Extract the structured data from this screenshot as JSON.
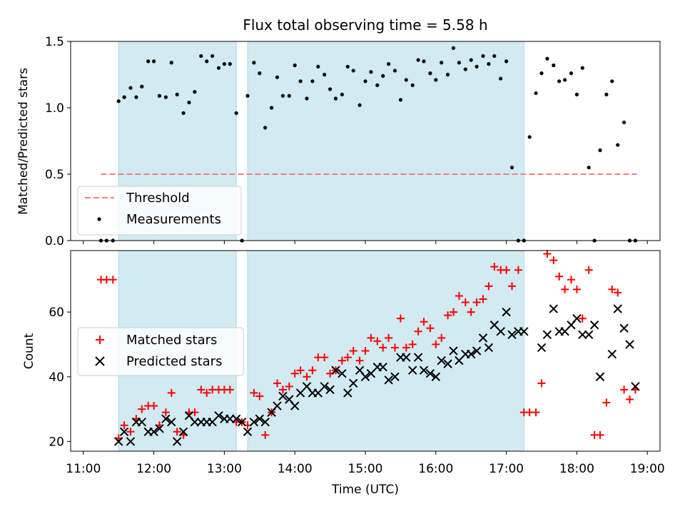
{
  "chart_data": [
    {
      "type": "scatter",
      "title": "Flux total observing time = 5.58 h",
      "ylabel": "Matched/Predicted stars",
      "xlim": [
        10.82,
        19.18
      ],
      "ylim": [
        0,
        1.5
      ],
      "yticks": [
        "0.0",
        "0.5",
        "1.0",
        "1.5"
      ],
      "threshold": {
        "label": "Threshold",
        "value": 0.5,
        "x_range": [
          11.25,
          18.85
        ],
        "color": "#f08080"
      },
      "observing_windows": [
        [
          11.5,
          13.17
        ],
        [
          13.33,
          17.25
        ]
      ],
      "legend": [
        "Threshold",
        "Measurements"
      ],
      "legend_position": "lower-left",
      "series": [
        {
          "name": "Measurements",
          "color": "#000000",
          "x": [
            11.25,
            11.33,
            11.42,
            11.5,
            11.58,
            11.67,
            11.75,
            11.83,
            11.92,
            12.0,
            12.08,
            12.17,
            12.25,
            12.33,
            12.42,
            12.5,
            12.58,
            12.67,
            12.75,
            12.83,
            12.92,
            13.0,
            13.08,
            13.17,
            13.25,
            13.33,
            13.42,
            13.5,
            13.58,
            13.67,
            13.75,
            13.83,
            13.92,
            14.0,
            14.08,
            14.17,
            14.25,
            14.33,
            14.42,
            14.5,
            14.58,
            14.67,
            14.75,
            14.83,
            14.92,
            15.0,
            15.08,
            15.17,
            15.25,
            15.33,
            15.42,
            15.5,
            15.58,
            15.67,
            15.75,
            15.83,
            15.92,
            16.0,
            16.08,
            16.17,
            16.25,
            16.33,
            16.42,
            16.5,
            16.58,
            16.67,
            16.75,
            16.83,
            16.92,
            17.0,
            17.08,
            17.17,
            17.25,
            17.33,
            17.42,
            17.5,
            17.58,
            17.67,
            17.75,
            17.83,
            17.92,
            18.0,
            18.08,
            18.17,
            18.25,
            18.33,
            18.42,
            18.5,
            18.58,
            18.67,
            18.75,
            18.83
          ],
          "y": [
            0,
            0,
            0,
            1.05,
            1.08,
            1.15,
            1.08,
            1.16,
            1.35,
            1.35,
            1.09,
            1.08,
            1.34,
            1.1,
            0.96,
            1.04,
            1.12,
            1.39,
            1.35,
            1.39,
            1.3,
            1.33,
            1.33,
            0.96,
            0,
            1.09,
            1.34,
            1.26,
            0.85,
            1.0,
            1.23,
            1.09,
            1.09,
            1.32,
            1.2,
            1.07,
            1.2,
            1.31,
            1.25,
            1.14,
            1.07,
            1.1,
            1.31,
            1.28,
            1.02,
            1.2,
            1.27,
            1.17,
            1.24,
            1.33,
            1.28,
            1.06,
            1.21,
            1.17,
            1.36,
            1.35,
            1.26,
            1.21,
            1.34,
            1.25,
            1.45,
            1.34,
            1.29,
            1.36,
            1.31,
            1.39,
            1.33,
            1.39,
            1.22,
            1.35,
            0.55,
            0,
            0,
            0.78,
            1.11,
            1.26,
            1.37,
            1.32,
            1.2,
            1.21,
            1.26,
            1.1,
            1.3,
            0.55,
            0,
            0.68,
            1.1,
            1.2,
            0.72,
            0.89,
            0,
            0
          ]
        }
      ]
    },
    {
      "type": "scatter",
      "xlabel": "Time (UTC)",
      "ylabel": "Count",
      "xlim": [
        10.82,
        19.18
      ],
      "ylim": [
        17,
        79
      ],
      "yticks": [
        "20",
        "40",
        "60"
      ],
      "xticks": [
        "11:00",
        "12:00",
        "13:00",
        "14:00",
        "15:00",
        "16:00",
        "17:00",
        "18:00",
        "19:00"
      ],
      "legend": [
        "Matched stars",
        "Predicted stars"
      ],
      "legend_position": "center-left",
      "series": [
        {
          "name": "Matched stars",
          "color": "#ff0000",
          "marker": "+",
          "x": [
            11.25,
            11.33,
            11.42,
            11.5,
            11.58,
            11.67,
            11.75,
            11.83,
            11.92,
            12.0,
            12.08,
            12.17,
            12.25,
            12.33,
            12.42,
            12.5,
            12.58,
            12.67,
            12.75,
            12.83,
            12.92,
            13.0,
            13.08,
            13.17,
            13.25,
            13.33,
            13.42,
            13.5,
            13.58,
            13.67,
            13.75,
            13.83,
            13.92,
            14.0,
            14.08,
            14.17,
            14.25,
            14.33,
            14.42,
            14.5,
            14.58,
            14.67,
            14.75,
            14.83,
            14.92,
            15.0,
            15.08,
            15.17,
            15.25,
            15.33,
            15.42,
            15.5,
            15.58,
            15.67,
            15.75,
            15.83,
            15.92,
            16.0,
            16.08,
            16.17,
            16.25,
            16.33,
            16.42,
            16.5,
            16.58,
            16.67,
            16.75,
            16.83,
            16.92,
            17.0,
            17.08,
            17.17,
            17.25,
            17.33,
            17.42,
            17.5,
            17.58,
            17.67,
            17.75,
            17.83,
            17.92,
            18.0,
            18.08,
            18.17,
            18.25,
            18.33,
            18.42,
            18.5,
            18.58,
            18.67,
            18.75,
            18.83
          ],
          "y": [
            70,
            70,
            70,
            21,
            25,
            23,
            27,
            30,
            31,
            31,
            25,
            29,
            35,
            23,
            22,
            29,
            29,
            36,
            35,
            36,
            36,
            36,
            36,
            26,
            26,
            25,
            35,
            34,
            22,
            29,
            38,
            36,
            37,
            41,
            42,
            40,
            42,
            46,
            46,
            41,
            42,
            45,
            46,
            48,
            45,
            48,
            52,
            51,
            49,
            52,
            49,
            58,
            49,
            50,
            54,
            57,
            55,
            50,
            52,
            59,
            60,
            65,
            63,
            60,
            63,
            64,
            68,
            74,
            73,
            73,
            68,
            73,
            29,
            29,
            29,
            38,
            78,
            76,
            71,
            67,
            70,
            67,
            58,
            73,
            22,
            22,
            32,
            67,
            66,
            36,
            33,
            36
          ]
        },
        {
          "name": "Predicted stars",
          "color": "#000000",
          "marker": "x",
          "x": [
            11.5,
            11.58,
            11.67,
            11.75,
            11.83,
            11.92,
            12.0,
            12.08,
            12.17,
            12.25,
            12.33,
            12.42,
            12.5,
            12.58,
            12.67,
            12.75,
            12.83,
            12.92,
            13.0,
            13.08,
            13.17,
            13.25,
            13.33,
            13.42,
            13.5,
            13.58,
            13.67,
            13.75,
            13.83,
            13.92,
            14.0,
            14.08,
            14.17,
            14.25,
            14.33,
            14.42,
            14.5,
            14.58,
            14.67,
            14.75,
            14.83,
            14.92,
            15.0,
            15.08,
            15.17,
            15.25,
            15.33,
            15.42,
            15.5,
            15.58,
            15.67,
            15.75,
            15.83,
            15.92,
            16.0,
            16.08,
            16.17,
            16.25,
            16.33,
            16.42,
            16.5,
            16.58,
            16.67,
            16.75,
            16.83,
            16.92,
            17.0,
            17.08,
            17.17,
            17.25,
            17.5,
            17.58,
            17.67,
            17.75,
            17.83,
            17.92,
            18.0,
            18.08,
            18.17,
            18.25,
            18.33,
            18.5,
            18.58,
            18.67,
            18.75,
            18.83
          ],
          "y": [
            20,
            23,
            20,
            26,
            26,
            23,
            23,
            24,
            27,
            26,
            20,
            23,
            28,
            26,
            26,
            26,
            26,
            28,
            27,
            27,
            27,
            26,
            23,
            26,
            27,
            26,
            29,
            31,
            34,
            33,
            31,
            35,
            37,
            35,
            35,
            37,
            36,
            42,
            41,
            35,
            38,
            42,
            40,
            41,
            43,
            43,
            39,
            40,
            46,
            46,
            42,
            46,
            42,
            41,
            40,
            45,
            44,
            48,
            45,
            47,
            47,
            48,
            52,
            49,
            56,
            54,
            60,
            53,
            54,
            54,
            49,
            53,
            61,
            54,
            54,
            56,
            58,
            53,
            53,
            56,
            40,
            47,
            61,
            55,
            50,
            37
          ]
        }
      ]
    }
  ]
}
